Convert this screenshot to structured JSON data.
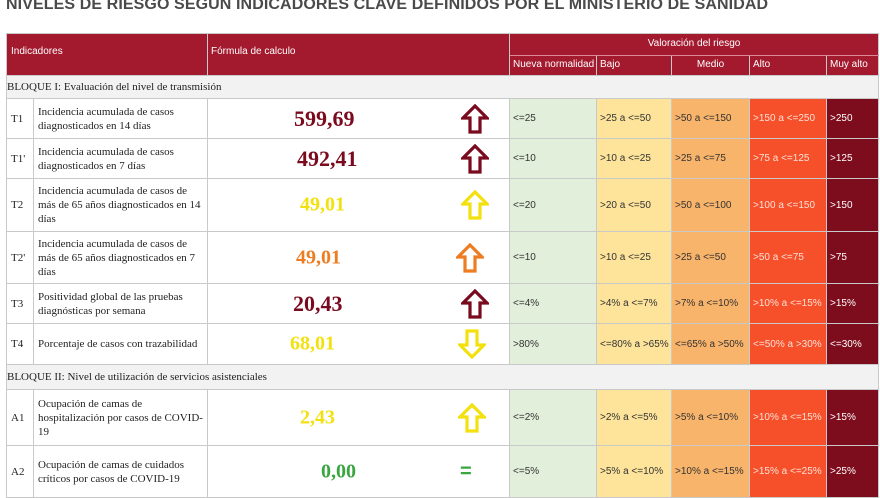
{
  "title": "NIVELES DE RIESGO SEGÚN INDICADORES CLAVE DEFINIDOS POR EL MINISTERIO DE SANIDAD",
  "headers": {
    "indicadores": "Indicadores",
    "formula": "Fórmula de calculo",
    "valoracion": "Valoración del riesgo",
    "levels": [
      "Nueva normalidad",
      "Bajo",
      "Medio",
      "Alto",
      "Muy alto"
    ]
  },
  "blocks": [
    {
      "title": "BLOQUE I: Evaluación del nivel de transmisión",
      "rows": [
        {
          "code": "T1",
          "desc": "Incidencia acumulada de casos diagnosticados en 14 días",
          "value": "599,69",
          "value_color": "#7a0a1e",
          "trend": "up",
          "trend_color": "#7a0a1e",
          "levels": [
            "<=25",
            ">25 a <=50",
            ">50 a <=150",
            ">150 a <=250",
            ">250"
          ]
        },
        {
          "code": "T1'",
          "desc": "Incidencia acumulada de casos diagnosticados en 7 días",
          "value": "492,41",
          "value_color": "#7a0a1e",
          "trend": "up",
          "trend_color": "#7a0a1e",
          "levels": [
            "<=10",
            ">10 a <=25",
            ">25 a <=75",
            ">75 a <=125",
            ">125"
          ]
        },
        {
          "code": "T2",
          "desc": "Incidencia acumulada de casos de más de 65 años diagnosticados en 14 días",
          "value": "49,01",
          "value_color": "#f3e10f",
          "trend": "up",
          "trend_color": "#f3e10f",
          "levels": [
            "<=20",
            ">20 a <=50",
            ">50 a <=100",
            ">100 a <=150",
            ">150"
          ]
        },
        {
          "code": "T2'",
          "desc": "Incidencia acumulada de casos de más de 65 años diagnosticados en 7 días",
          "value": "49,01",
          "value_color": "#ee7d22",
          "trend": "up",
          "trend_color": "#ee7d22",
          "levels": [
            "<=10",
            ">10 a <=25",
            ">25 a <=50",
            ">50 a <=75",
            ">75"
          ]
        },
        {
          "code": "T3",
          "desc": "Positividad global de las pruebas diagnósticas por semana",
          "value": "20,43",
          "value_color": "#7a0a1e",
          "trend": "up",
          "trend_color": "#7a0a1e",
          "levels": [
            "<=4%",
            ">4% a <=7%",
            ">7% a <=10%",
            ">10% a <=15%",
            ">15%"
          ]
        },
        {
          "code": "T4",
          "desc": "Porcentaje de casos con trazabilidad",
          "value": "68,01",
          "value_color": "#f3e10f",
          "trend": "down",
          "trend_color": "#f3e10f",
          "levels": [
            ">80%",
            "<=80% a >65%",
            "<=65% a >50%",
            "<=50% a >30%",
            "<=30%"
          ]
        }
      ]
    },
    {
      "title": "BLOQUE II: Nivel de utilización de servicios asistenciales",
      "rows": [
        {
          "code": "A1",
          "desc": "Ocupación de camas de hospitalización por casos de COVID-19",
          "value": "2,43",
          "value_color": "#f3e10f",
          "trend": "up",
          "trend_color": "#f3e10f",
          "levels": [
            "<=2%",
            ">2% a <=5%",
            ">5% a <=10%",
            ">10% a <=15%",
            ">15%"
          ]
        },
        {
          "code": "A2",
          "desc": "Ocupación de camas de cuidados críticos por casos de COVID-19",
          "value": "0,00",
          "value_color": "#3aa640",
          "trend": "equal",
          "trend_color": "#3aa640",
          "levels": [
            "<=5%",
            ">5% a <=10%",
            ">10% a <=15%",
            ">15% a <=25%",
            ">25%"
          ]
        }
      ]
    }
  ]
}
